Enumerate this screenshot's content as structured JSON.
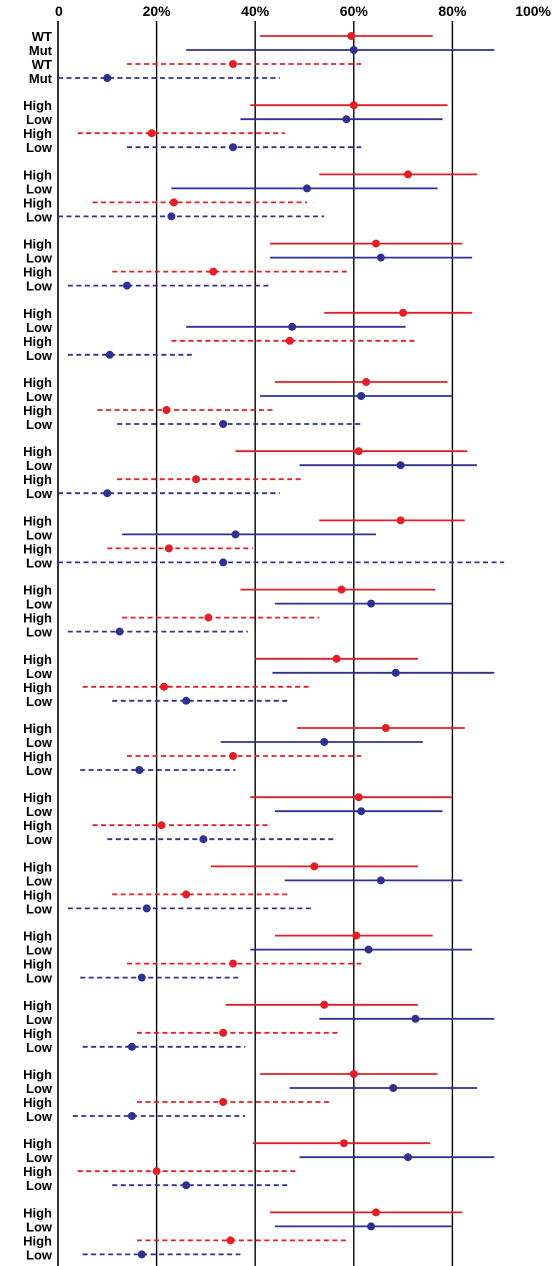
{
  "chart_data": {
    "type": "forest",
    "xlim": [
      0,
      100
    ],
    "x_ticks": [
      0,
      20,
      40,
      60,
      80,
      100
    ],
    "x_tick_labels": [
      "0",
      "20%",
      "40%",
      "60%",
      "80%",
      "100%"
    ],
    "gridlines_x": [
      20,
      40,
      60,
      80
    ],
    "colors": {
      "red": "#e41e26",
      "blue": "#2e3192"
    },
    "line_styles": [
      "solid",
      "solid",
      "dashed",
      "dashed"
    ],
    "groups": [
      {
        "labels": [
          "WT",
          "Mut",
          "WT",
          "Mut"
        ],
        "rows": [
          {
            "point": 59.5,
            "low": 41,
            "high": 76
          },
          {
            "point": 60,
            "low": 26,
            "high": 88.5
          },
          {
            "point": 35.5,
            "low": 14,
            "high": 61.5
          },
          {
            "point": 10,
            "low": 0,
            "high": 45
          }
        ]
      },
      {
        "labels": [
          "High",
          "Low",
          "High",
          "Low"
        ],
        "rows": [
          {
            "point": 60,
            "low": 39,
            "high": 79
          },
          {
            "point": 58.5,
            "low": 37,
            "high": 78
          },
          {
            "point": 19,
            "low": 4,
            "high": 46
          },
          {
            "point": 35.5,
            "low": 14,
            "high": 61.5
          }
        ]
      },
      {
        "labels": [
          "High",
          "Low",
          "High",
          "Low"
        ],
        "rows": [
          {
            "point": 71,
            "low": 53,
            "high": 85
          },
          {
            "point": 50.5,
            "low": 23,
            "high": 77
          },
          {
            "point": 23.5,
            "low": 7,
            "high": 50.5
          },
          {
            "point": 23,
            "low": 0,
            "high": 54
          }
        ]
      },
      {
        "labels": [
          "High",
          "Low",
          "High",
          "Low"
        ],
        "rows": [
          {
            "point": 64.5,
            "low": 43,
            "high": 82
          },
          {
            "point": 65.5,
            "low": 43,
            "high": 84
          },
          {
            "point": 31.5,
            "low": 11,
            "high": 59
          },
          {
            "point": 14,
            "low": 2,
            "high": 43
          }
        ]
      },
      {
        "labels": [
          "High",
          "Low",
          "High",
          "Low"
        ],
        "rows": [
          {
            "point": 70,
            "low": 54,
            "high": 84
          },
          {
            "point": 47.5,
            "low": 26,
            "high": 70.5
          },
          {
            "point": 47,
            "low": 23,
            "high": 72.5
          },
          {
            "point": 10.5,
            "low": 2,
            "high": 27.5
          }
        ]
      },
      {
        "labels": [
          "High",
          "Low",
          "High",
          "Low"
        ],
        "rows": [
          {
            "point": 62.5,
            "low": 44,
            "high": 79
          },
          {
            "point": 61.5,
            "low": 41,
            "high": 80
          },
          {
            "point": 22,
            "low": 8,
            "high": 44
          },
          {
            "point": 33.5,
            "low": 12,
            "high": 61.5
          }
        ]
      },
      {
        "labels": [
          "High",
          "Low",
          "High",
          "Low"
        ],
        "rows": [
          {
            "point": 61,
            "low": 36,
            "high": 83
          },
          {
            "point": 69.5,
            "low": 49,
            "high": 85
          },
          {
            "point": 28,
            "low": 12,
            "high": 49.5
          },
          {
            "point": 10,
            "low": 0,
            "high": 45
          }
        ]
      },
      {
        "labels": [
          "High",
          "Low",
          "High",
          "Low"
        ],
        "rows": [
          {
            "point": 69.5,
            "low": 53,
            "high": 82.5
          },
          {
            "point": 36,
            "low": 13,
            "high": 64.5
          },
          {
            "point": 22.5,
            "low": 10,
            "high": 39.5
          },
          {
            "point": 33.5,
            "low": 0,
            "high": 90.5
          }
        ]
      },
      {
        "labels": [
          "High",
          "Low",
          "High",
          "Low"
        ],
        "rows": [
          {
            "point": 57.5,
            "low": 37,
            "high": 76.5
          },
          {
            "point": 63.5,
            "low": 44,
            "high": 80
          },
          {
            "point": 30.5,
            "low": 13,
            "high": 53
          },
          {
            "point": 12.5,
            "low": 2,
            "high": 38.5
          }
        ]
      },
      {
        "labels": [
          "High",
          "Low",
          "High",
          "Low"
        ],
        "rows": [
          {
            "point": 56.5,
            "low": 40,
            "high": 73
          },
          {
            "point": 68.5,
            "low": 43.5,
            "high": 88.5
          },
          {
            "point": 21.5,
            "low": 5,
            "high": 51
          },
          {
            "point": 26,
            "low": 11,
            "high": 46.5
          }
        ]
      },
      {
        "labels": [
          "High",
          "Low",
          "High",
          "Low"
        ],
        "rows": [
          {
            "point": 66.5,
            "low": 48.5,
            "high": 82.5
          },
          {
            "point": 54,
            "low": 33,
            "high": 74
          },
          {
            "point": 35.5,
            "low": 14,
            "high": 61.5
          },
          {
            "point": 16.5,
            "low": 4.5,
            "high": 36
          }
        ]
      },
      {
        "labels": [
          "High",
          "Low",
          "High",
          "Low"
        ],
        "rows": [
          {
            "point": 61,
            "low": 39,
            "high": 80
          },
          {
            "point": 61.5,
            "low": 44,
            "high": 78
          },
          {
            "point": 21,
            "low": 7,
            "high": 42.5
          },
          {
            "point": 29.5,
            "low": 10,
            "high": 56
          }
        ]
      },
      {
        "labels": [
          "High",
          "Low",
          "High",
          "Low"
        ],
        "rows": [
          {
            "point": 52,
            "low": 31,
            "high": 73
          },
          {
            "point": 65.5,
            "low": 46,
            "high": 82
          },
          {
            "point": 26,
            "low": 11,
            "high": 46.5
          },
          {
            "point": 18,
            "low": 2,
            "high": 52
          }
        ]
      },
      {
        "labels": [
          "High",
          "Low",
          "High",
          "Low"
        ],
        "rows": [
          {
            "point": 60.5,
            "low": 44,
            "high": 76
          },
          {
            "point": 63,
            "low": 39,
            "high": 84
          },
          {
            "point": 35.5,
            "low": 14,
            "high": 61.5
          },
          {
            "point": 17,
            "low": 4.5,
            "high": 37
          }
        ]
      },
      {
        "labels": [
          "High",
          "Low",
          "High",
          "Low"
        ],
        "rows": [
          {
            "point": 54,
            "low": 34,
            "high": 73
          },
          {
            "point": 72.5,
            "low": 53,
            "high": 88.5
          },
          {
            "point": 33.5,
            "low": 16,
            "high": 57
          },
          {
            "point": 15,
            "low": 5,
            "high": 38
          }
        ]
      },
      {
        "labels": [
          "High",
          "Low",
          "High",
          "Low"
        ],
        "rows": [
          {
            "point": 60,
            "low": 41,
            "high": 77
          },
          {
            "point": 68,
            "low": 47,
            "high": 85
          },
          {
            "point": 33.5,
            "low": 16,
            "high": 55
          },
          {
            "point": 15,
            "low": 3,
            "high": 38
          }
        ]
      },
      {
        "labels": [
          "High",
          "Low",
          "High",
          "Low"
        ],
        "rows": [
          {
            "point": 58,
            "low": 39.5,
            "high": 75.5
          },
          {
            "point": 71,
            "low": 49,
            "high": 88.5
          },
          {
            "point": 20,
            "low": 4,
            "high": 48.5
          },
          {
            "point": 26,
            "low": 11,
            "high": 46.5
          }
        ]
      },
      {
        "labels": [
          "High",
          "Low",
          "High",
          "Low"
        ],
        "rows": [
          {
            "point": 64.5,
            "low": 43,
            "high": 82
          },
          {
            "point": 63.5,
            "low": 44,
            "high": 80
          },
          {
            "point": 35,
            "low": 16,
            "high": 59
          },
          {
            "point": 17,
            "low": 5,
            "high": 37
          }
        ]
      }
    ]
  }
}
